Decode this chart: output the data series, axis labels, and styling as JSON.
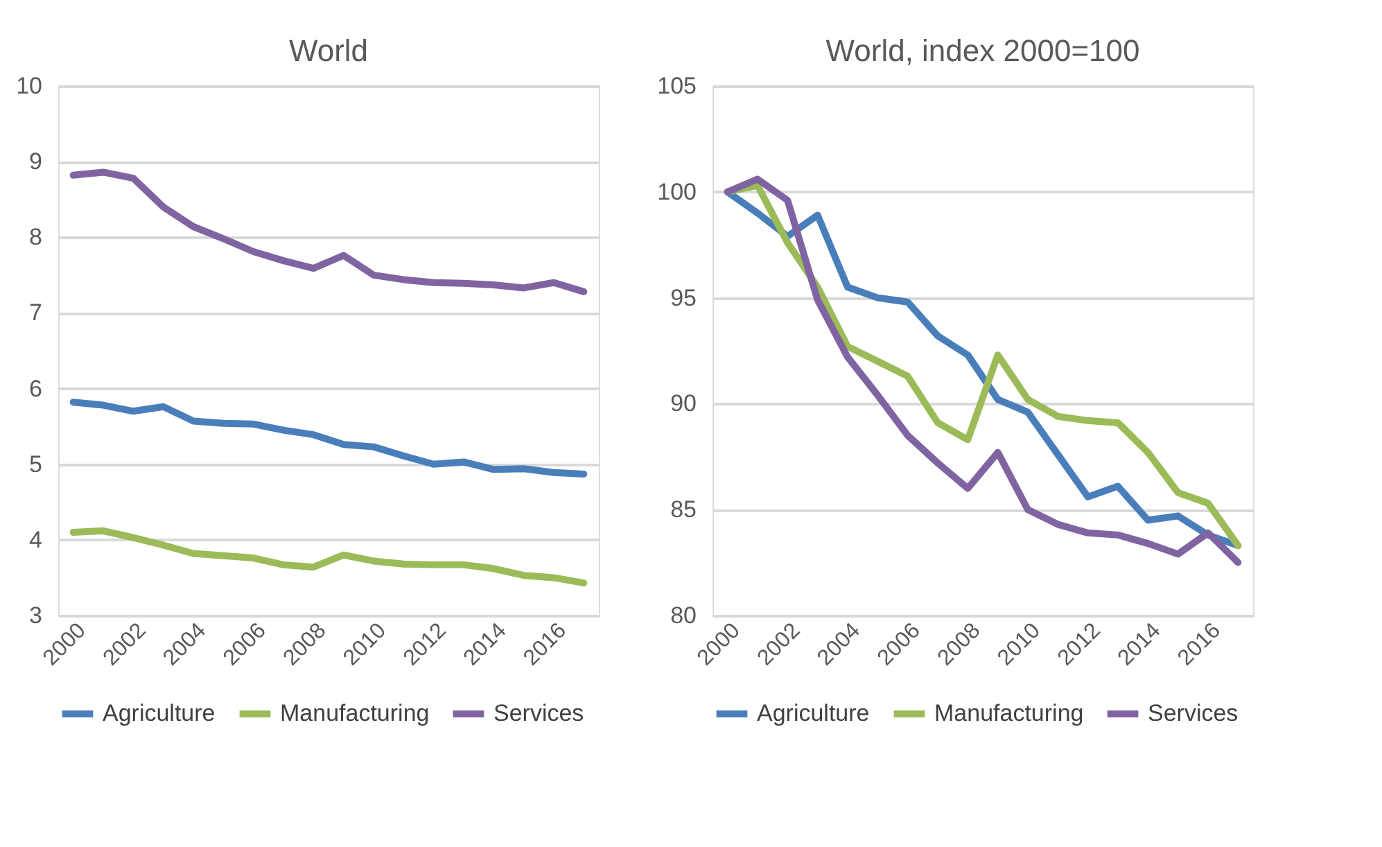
{
  "chart_data": [
    {
      "type": "line",
      "title": "World",
      "categories": [
        "2000",
        null,
        "2002",
        null,
        "2004",
        null,
        "2006",
        null,
        "2008",
        null,
        "2010",
        null,
        "2012",
        null,
        "2014",
        null,
        "2016",
        null
      ],
      "ylim": [
        3,
        10
      ],
      "yticks": [
        3,
        4,
        5,
        6,
        7,
        8,
        9,
        10
      ],
      "grid": "y",
      "legend": "bottom",
      "line_style": "solid",
      "marker": "none",
      "series": [
        {
          "name": "Agriculture",
          "color": "#4a7ebb",
          "values": [
            5.82,
            5.78,
            5.7,
            5.76,
            5.57,
            5.54,
            5.53,
            5.45,
            5.39,
            5.26,
            5.23,
            5.11,
            5.0,
            5.03,
            4.93,
            4.94,
            4.89,
            4.87
          ]
        },
        {
          "name": "Manufacturing",
          "color": "#9bbb59",
          "values": [
            4.1,
            4.12,
            4.03,
            3.93,
            3.82,
            3.79,
            3.76,
            3.67,
            3.64,
            3.8,
            3.72,
            3.68,
            3.67,
            3.67,
            3.62,
            3.53,
            3.5,
            3.43
          ]
        },
        {
          "name": "Services",
          "color": "#8064a2",
          "values": [
            8.82,
            8.86,
            8.78,
            8.4,
            8.14,
            7.98,
            7.81,
            7.69,
            7.59,
            7.76,
            7.5,
            7.44,
            7.4,
            7.39,
            7.37,
            7.33,
            7.4,
            7.28
          ]
        }
      ]
    },
    {
      "type": "line",
      "title": "World, index 2000=100",
      "categories": [
        "2000",
        null,
        "2002",
        null,
        "2004",
        null,
        "2006",
        null,
        "2008",
        null,
        "2010",
        null,
        "2012",
        null,
        "2014",
        null,
        "2016",
        null
      ],
      "ylim": [
        80,
        105
      ],
      "yticks": [
        80,
        85,
        90,
        95,
        100,
        105
      ],
      "grid": "y",
      "legend": "bottom",
      "line_style": "solid",
      "marker": "none",
      "series": [
        {
          "name": "Agriculture",
          "color": "#4a7ebb",
          "values": [
            100,
            99.0,
            97.9,
            98.9,
            95.5,
            95.0,
            94.8,
            93.2,
            92.3,
            90.2,
            89.6,
            87.6,
            85.6,
            86.1,
            84.5,
            84.7,
            83.8,
            83.3
          ]
        },
        {
          "name": "Manufacturing",
          "color": "#9bbb59",
          "values": [
            100,
            100.3,
            97.6,
            95.5,
            92.7,
            92.0,
            91.3,
            89.1,
            88.3,
            92.3,
            90.2,
            89.4,
            89.2,
            89.1,
            87.7,
            85.8,
            85.3,
            83.3
          ]
        },
        {
          "name": "Services",
          "color": "#8064a2",
          "values": [
            100,
            100.6,
            99.6,
            94.9,
            92.2,
            90.4,
            88.5,
            87.2,
            86.0,
            87.7,
            85.0,
            84.3,
            83.9,
            83.8,
            83.4,
            82.9,
            83.9,
            82.5
          ]
        }
      ]
    }
  ]
}
